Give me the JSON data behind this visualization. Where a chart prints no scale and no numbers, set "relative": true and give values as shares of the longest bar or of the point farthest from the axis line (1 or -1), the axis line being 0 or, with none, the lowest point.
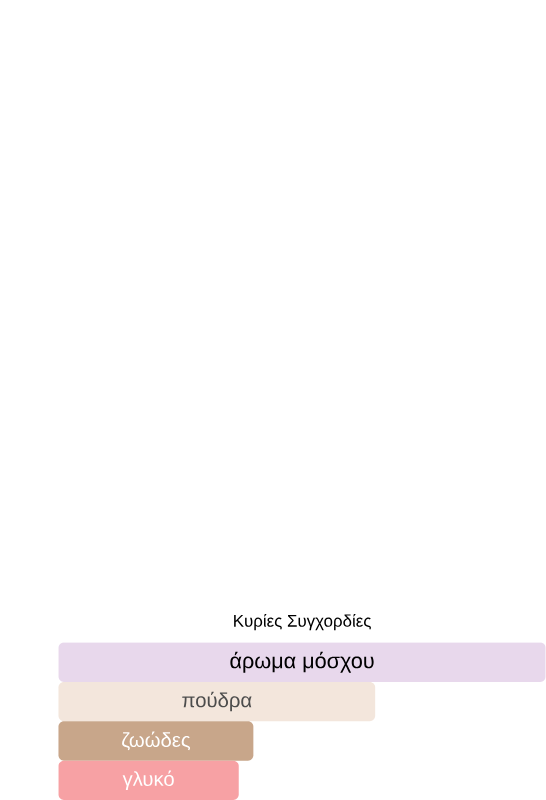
{
  "chart_data": {
    "type": "bar",
    "orientation": "horizontal",
    "relative": true,
    "title": "Κυρίες Συγχορδίες",
    "categories": [
      "άρωμα μόσχου",
      "πούδρα",
      "ζωώδες",
      "γλυκό"
    ],
    "values": [
      1,
      0.65,
      0.4,
      0.37
    ],
    "colors": [
      "#e8d8ec",
      "#f3e6dc",
      "#c8a68a",
      "#f7a1a4"
    ]
  }
}
